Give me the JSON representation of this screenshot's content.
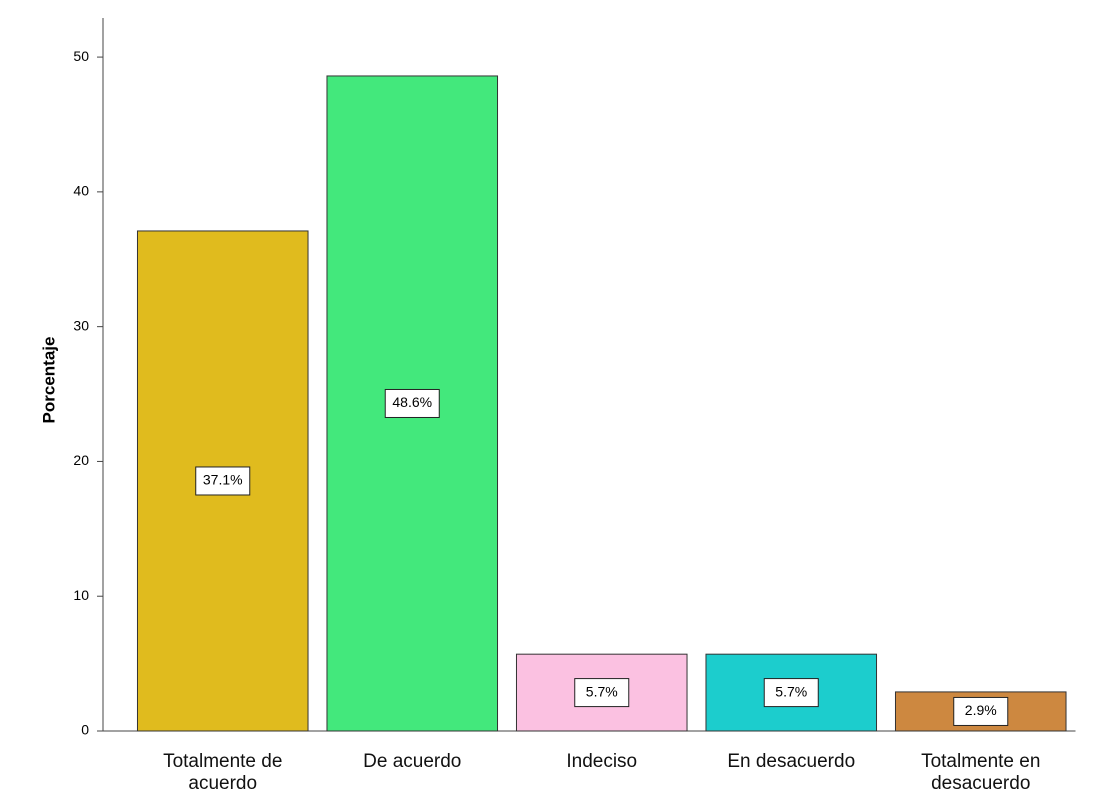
{
  "chart_data": {
    "type": "bar",
    "y_axis_label": "Porcentaje",
    "categories": [
      "Totalmente de acuerdo",
      "De acuerdo",
      "Indeciso",
      "En desacuerdo",
      "Totalmente en desacuerdo"
    ],
    "values": [
      37.1,
      48.6,
      5.7,
      5.7,
      2.9
    ],
    "value_labels": [
      "37.1%",
      "48.6%",
      "5.7%",
      "5.7%",
      "2.9%"
    ],
    "colors": [
      "#e0bb1e",
      "#43e87c",
      "#fbc1e1",
      "#1ccdcd",
      "#cd8840"
    ],
    "ylim": [
      0,
      52.9
    ],
    "yticks": [
      0,
      10,
      20,
      30,
      40,
      50
    ],
    "grid": false
  }
}
